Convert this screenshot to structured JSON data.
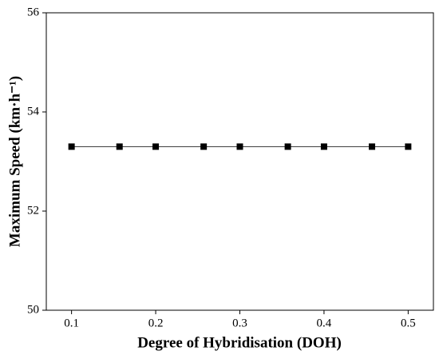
{
  "chart_data": {
    "type": "line",
    "x_label": "Degree of Hybridisation (DOH)",
    "y_label": "Maximum Speed (km·h⁻¹)",
    "x": [
      0.1,
      0.157,
      0.2,
      0.257,
      0.3,
      0.357,
      0.4,
      0.457,
      0.5
    ],
    "series": [
      {
        "color": "#000000",
        "values": [
          53.3,
          53.3,
          53.3,
          53.3,
          53.3,
          53.3,
          53.3,
          53.3,
          53.3
        ]
      }
    ],
    "xlim": [
      0.07,
      0.53
    ],
    "xticks": [
      0.1,
      0.2,
      0.3,
      0.4,
      0.5
    ],
    "ylim": [
      50,
      56
    ],
    "yticks": [
      50,
      52,
      54,
      56
    ]
  }
}
